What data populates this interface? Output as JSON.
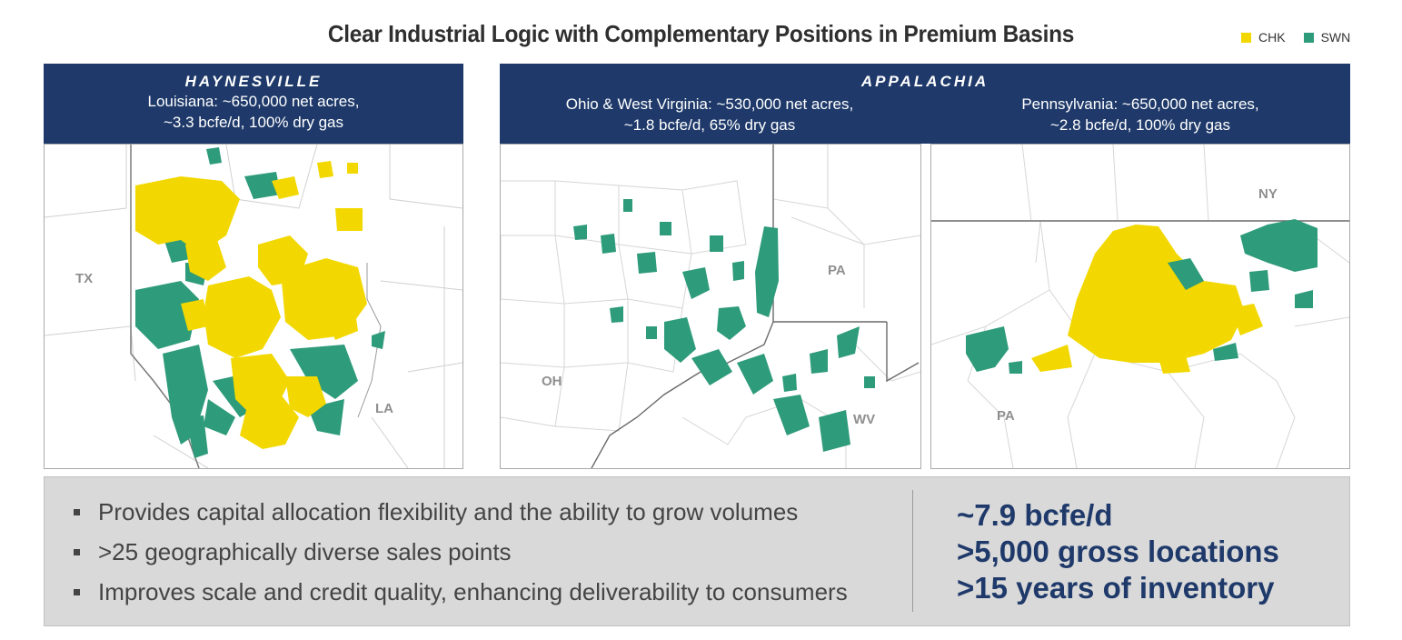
{
  "title": "Clear Industrial Logic with Complementary Positions in Premium Basins",
  "legend": [
    {
      "label": "CHK",
      "color": "#f2d800"
    },
    {
      "label": "SWN",
      "color": "#2e9b7a"
    }
  ],
  "haynesville": {
    "basin": "HAYNESVILLE",
    "line1": "Louisiana: ~650,000 net acres,",
    "line2": "~3.3 bcfe/d, 100% dry gas",
    "states": {
      "tx": "TX",
      "la": "LA"
    }
  },
  "appalachia": {
    "basin": "APPALACHIA",
    "ohio_line1": "Ohio & West Virginia: ~530,000 net acres,",
    "ohio_line2": "~1.8 bcfe/d, 65% dry gas",
    "pa_line1": "Pennsylvania: ~650,000 net acres,",
    "pa_line2": "~2.8 bcfe/d, 100% dry gas",
    "ohio_states": {
      "pa": "PA",
      "oh": "OH",
      "wv": "WV"
    },
    "pa_states": {
      "ny": "NY",
      "pa": "PA"
    }
  },
  "bullets": [
    "Provides capital allocation flexibility and the ability to grow volumes",
    ">25 geographically diverse sales points",
    "Improves scale and credit quality, enhancing deliverability to consumers"
  ],
  "stats": [
    "~7.9 bcfe/d",
    ">5,000 gross locations",
    ">15 years of inventory"
  ]
}
